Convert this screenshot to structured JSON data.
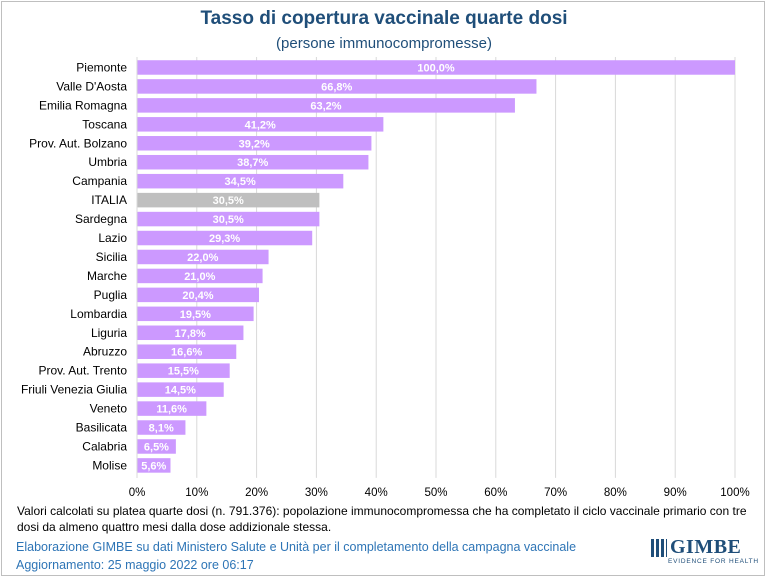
{
  "chart_data": {
    "type": "bar",
    "orientation": "horizontal",
    "title": "Tasso di copertura vaccinale quarte dosi",
    "subtitle": "(persone immunocompromesse)",
    "categories": [
      "Piemonte",
      "Valle D'Aosta",
      "Emilia Romagna",
      "Toscana",
      "Prov. Aut. Bolzano",
      "Umbria",
      "Campania",
      "ITALIA",
      "Sardegna",
      "Lazio",
      "Sicilia",
      "Marche",
      "Puglia",
      "Lombardia",
      "Liguria",
      "Abruzzo",
      "Prov. Aut. Trento",
      "Friuli Venezia Giulia",
      "Veneto",
      "Basilicata",
      "Calabria",
      "Molise"
    ],
    "values": [
      100.0,
      66.8,
      63.2,
      41.2,
      39.2,
      38.7,
      34.5,
      30.5,
      30.5,
      29.3,
      22.0,
      21.0,
      20.4,
      19.5,
      17.8,
      16.6,
      15.5,
      14.5,
      11.6,
      8.1,
      6.5,
      5.6
    ],
    "value_labels": [
      "100,0%",
      "66,8%",
      "63,2%",
      "41,2%",
      "39,2%",
      "38,7%",
      "34,5%",
      "30,5%",
      "30,5%",
      "29,3%",
      "22,0%",
      "21,0%",
      "20,4%",
      "19,5%",
      "17,8%",
      "16,6%",
      "15,5%",
      "14,5%",
      "11,6%",
      "8,1%",
      "6,5%",
      "5,6%"
    ],
    "highlight_category": "ITALIA",
    "xlim": [
      0,
      100
    ],
    "xticks": [
      0,
      10,
      20,
      30,
      40,
      50,
      60,
      70,
      80,
      90,
      100
    ],
    "xtick_labels": [
      "0%",
      "10%",
      "20%",
      "30%",
      "40%",
      "50%",
      "60%",
      "70%",
      "80%",
      "90%",
      "100%"
    ],
    "grid": true,
    "legend": "none",
    "colors": {
      "bar": "#cc99ff",
      "highlight": "#bfbfbf",
      "grid": "#d9d9d9",
      "value_text": "#ffffff"
    }
  },
  "footer": {
    "note": "Valori calcolati su platea quarte dosi (n. 791.376): popolazione immunocompromessa che ha completato il ciclo vaccinale primario con tre dosi da almeno quattro mesi dalla dose addizionale stessa.",
    "credit": "Elaborazione GIMBE su dati Ministero Salute e Unità per il completamento della campagna vaccinale",
    "updated": "Aggiornamento: 25 maggio 2022 ore 06:17"
  },
  "logo": {
    "name": "GIMBE",
    "tagline": "EVIDENCE FOR HEALTH",
    "icon": "gimbe-logo-icon"
  }
}
